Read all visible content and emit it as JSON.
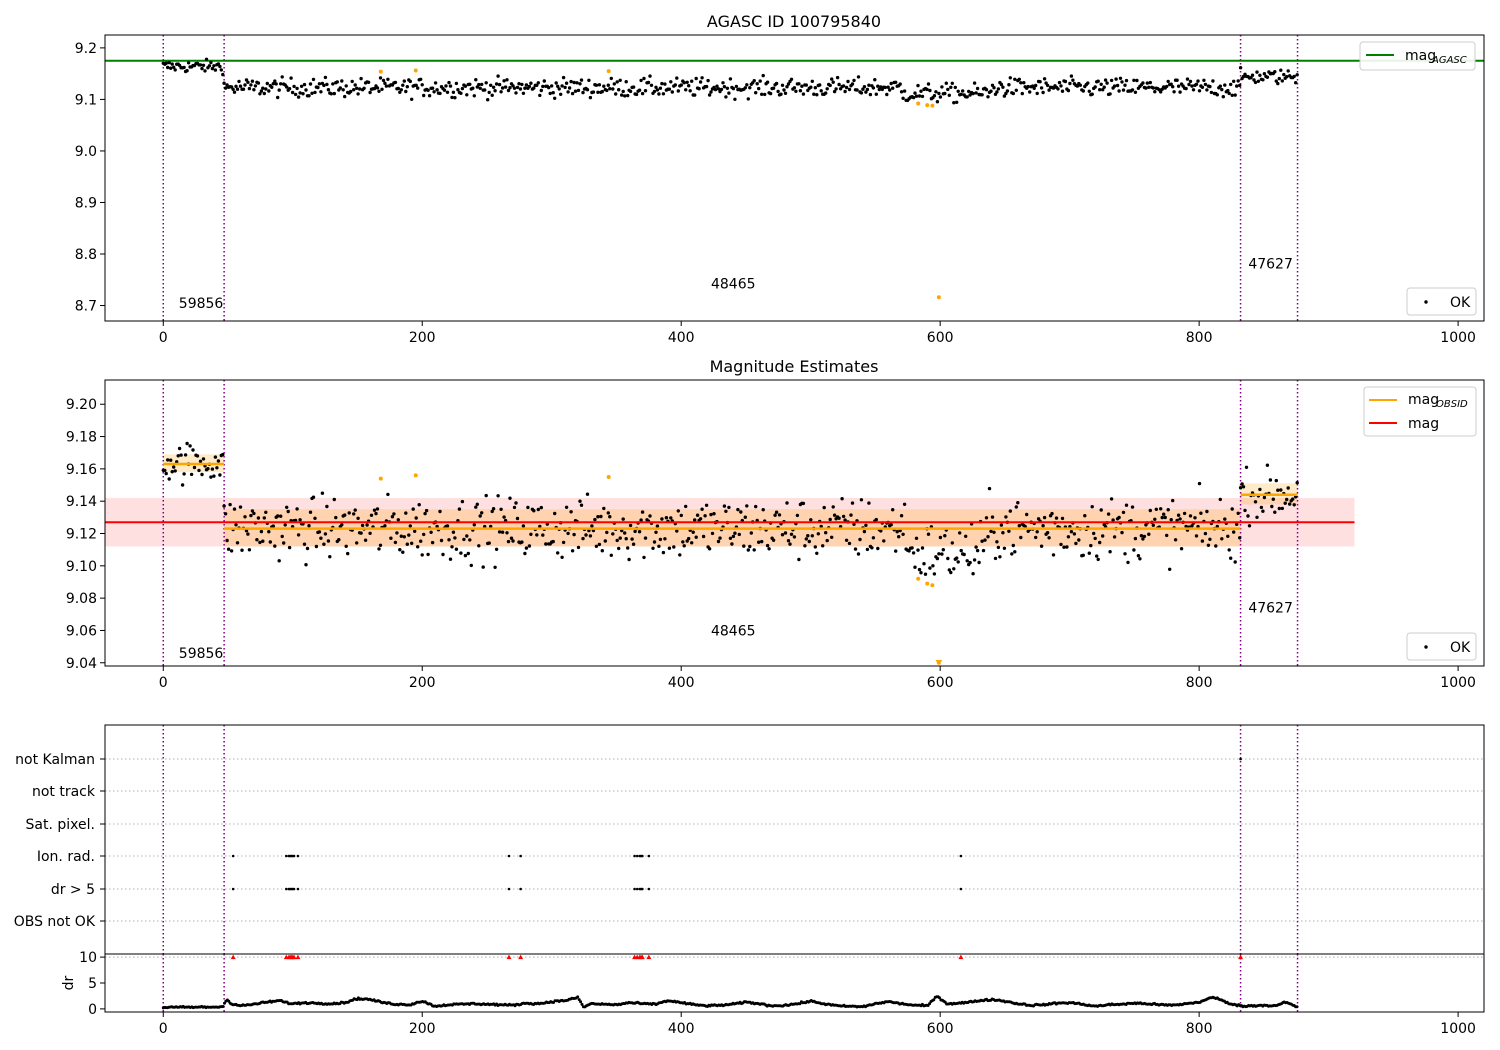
{
  "chart_data": [
    {
      "type": "scatter",
      "title": "AGASC ID 100795840",
      "xlim": [
        -45,
        1020
      ],
      "ylim": [
        8.67,
        9.225
      ],
      "xticks": [
        "0",
        "200",
        "400",
        "600",
        "800",
        "1000"
      ],
      "yticks": [
        "9.2",
        "9.1",
        "9.0",
        "8.9",
        "8.8",
        "8.7"
      ],
      "reference_line": {
        "name": "mag",
        "subscript": "AGASC",
        "value": 9.175,
        "color": "#008000"
      },
      "boundaries": [
        0,
        47,
        832,
        876
      ],
      "obsid_labels": [
        {
          "text": "59856",
          "x": 12,
          "y": 8.695
        },
        {
          "text": "48465",
          "x": 423,
          "y": 8.733
        },
        {
          "text": "47627",
          "x": 838,
          "y": 8.772
        }
      ],
      "legend": [
        {
          "label": "mag",
          "subscript": "AGASC",
          "position": "top-right"
        },
        {
          "label": "OK",
          "position": "bottom-right"
        }
      ],
      "outliers": [
        {
          "x": 168,
          "y": 9.154
        },
        {
          "x": 195,
          "y": 9.156
        },
        {
          "x": 344,
          "y": 9.155
        },
        {
          "x": 583,
          "y": 9.092
        },
        {
          "x": 590,
          "y": 9.089
        },
        {
          "x": 594,
          "y": 9.088
        },
        {
          "x": 599,
          "y": 8.716
        }
      ],
      "series": [
        {
          "name": "OK",
          "x_range": [
            0,
            47
          ],
          "mean": 9.164,
          "scatter": 0.012
        },
        {
          "name": "OK",
          "x_range": [
            47,
            832
          ],
          "mean": 9.123,
          "scatter": 0.015
        },
        {
          "name": "OK",
          "x_range": [
            832,
            876
          ],
          "mean": 9.144,
          "scatter": 0.012
        }
      ]
    },
    {
      "type": "scatter",
      "title": "Magnitude Estimates",
      "xlim": [
        -45,
        1020
      ],
      "ylim": [
        9.038,
        9.215
      ],
      "xticks": [
        "0",
        "200",
        "400",
        "600",
        "800",
        "1000"
      ],
      "yticks": [
        "9.20",
        "9.18",
        "9.16",
        "9.14",
        "9.12",
        "9.10",
        "9.08",
        "9.06",
        "9.04"
      ],
      "boundaries": [
        0,
        47,
        832,
        876
      ],
      "mag": {
        "value": 9.127,
        "band": [
          9.112,
          9.142
        ],
        "x_range": [
          -45,
          920
        ]
      },
      "obsid_mags": [
        {
          "x_range": [
            0,
            47
          ],
          "value": 9.163,
          "band": [
            9.158,
            9.169
          ]
        },
        {
          "x_range": [
            47,
            832
          ],
          "value": 9.123,
          "band": [
            9.112,
            9.135
          ]
        },
        {
          "x_range": [
            832,
            876
          ],
          "value": 9.144,
          "band": [
            9.138,
            9.151
          ]
        }
      ],
      "obsid_labels": [
        {
          "text": "59856",
          "x": 12,
          "y": 9.043
        },
        {
          "text": "48465",
          "x": 423,
          "y": 9.057
        },
        {
          "text": "47627",
          "x": 838,
          "y": 9.071
        }
      ],
      "legend": [
        {
          "label": "mag",
          "subscript": "OBSID",
          "position": "top-right"
        },
        {
          "label": "mag",
          "position": "top-right"
        },
        {
          "label": "OK",
          "position": "bottom-right"
        }
      ],
      "outliers": [
        {
          "x": 168,
          "y": 9.154
        },
        {
          "x": 195,
          "y": 9.156
        },
        {
          "x": 344,
          "y": 9.155
        },
        {
          "x": 583,
          "y": 9.092
        },
        {
          "x": 590,
          "y": 9.089
        },
        {
          "x": 594,
          "y": 9.088
        },
        {
          "x": 599,
          "y": 9.04
        }
      ]
    },
    {
      "type": "scatter",
      "title": "",
      "xlim": [
        -45,
        1020
      ],
      "xticks": [
        "0",
        "200",
        "400",
        "600",
        "800",
        "1000"
      ],
      "boundaries": [
        0,
        47,
        832,
        876
      ],
      "flag_rows": [
        "not Kalman",
        "not track",
        "Sat. pixel.",
        "Ion. rad.",
        "dr > 5",
        "OBS not OK"
      ],
      "flag_points": {
        "not Kalman": [
          832
        ],
        "Ion. rad.": [
          54,
          95,
          97,
          98,
          99,
          100,
          101,
          104,
          267,
          276,
          364,
          366,
          368,
          369,
          370,
          375,
          616
        ],
        "dr > 5": [
          54,
          95,
          97,
          98,
          99,
          100,
          101,
          104,
          267,
          276,
          364,
          366,
          368,
          369,
          370,
          375,
          616
        ]
      },
      "dr_axis": {
        "label": "dr",
        "yticks": [
          "10",
          "5",
          "0"
        ],
        "ylim": [
          -0.6,
          10.6
        ]
      },
      "dr_clipped_x": [
        54,
        95,
        97,
        98,
        99,
        100,
        101,
        104,
        267,
        276,
        364,
        366,
        368,
        369,
        370,
        375,
        616,
        832
      ],
      "dr_points": [
        [
          0,
          0.3
        ],
        [
          40,
          0.35
        ],
        [
          46,
          0.4
        ],
        [
          49,
          2.0
        ],
        [
          52,
          1.0
        ],
        [
          60,
          0.6
        ],
        [
          70,
          0.9
        ],
        [
          80,
          1.3
        ],
        [
          90,
          1.6
        ],
        [
          95,
          1.2
        ],
        [
          100,
          1.0
        ],
        [
          110,
          1.2
        ],
        [
          120,
          1.1
        ],
        [
          130,
          1.0
        ],
        [
          140,
          1.2
        ],
        [
          150,
          2.0
        ],
        [
          160,
          1.8
        ],
        [
          170,
          1.2
        ],
        [
          180,
          0.9
        ],
        [
          190,
          0.8
        ],
        [
          200,
          1.5
        ],
        [
          210,
          0.5
        ],
        [
          220,
          0.8
        ],
        [
          240,
          1.0
        ],
        [
          260,
          0.8
        ],
        [
          270,
          0.7
        ],
        [
          280,
          1.1
        ],
        [
          290,
          1.0
        ],
        [
          300,
          1.4
        ],
        [
          310,
          1.6
        ],
        [
          320,
          2.2
        ],
        [
          325,
          0.3
        ],
        [
          330,
          1.0
        ],
        [
          350,
          0.8
        ],
        [
          360,
          1.2
        ],
        [
          370,
          1.0
        ],
        [
          380,
          0.9
        ],
        [
          390,
          1.6
        ],
        [
          400,
          1.2
        ],
        [
          410,
          0.8
        ],
        [
          420,
          0.6
        ],
        [
          430,
          0.7
        ],
        [
          440,
          0.9
        ],
        [
          450,
          1.3
        ],
        [
          460,
          1.0
        ],
        [
          470,
          0.6
        ],
        [
          480,
          0.7
        ],
        [
          490,
          1.0
        ],
        [
          500,
          1.5
        ],
        [
          510,
          1.0
        ],
        [
          520,
          0.6
        ],
        [
          530,
          0.5
        ],
        [
          540,
          0.4
        ],
        [
          550,
          1.0
        ],
        [
          560,
          1.4
        ],
        [
          570,
          1.0
        ],
        [
          580,
          0.7
        ],
        [
          590,
          0.6
        ],
        [
          598,
          2.5
        ],
        [
          605,
          1.0
        ],
        [
          620,
          1.2
        ],
        [
          630,
          1.6
        ],
        [
          640,
          1.8
        ],
        [
          650,
          1.5
        ],
        [
          660,
          1.0
        ],
        [
          670,
          0.7
        ],
        [
          680,
          0.8
        ],
        [
          690,
          1.1
        ],
        [
          700,
          1.2
        ],
        [
          710,
          0.9
        ],
        [
          720,
          0.5
        ],
        [
          730,
          0.8
        ],
        [
          740,
          0.9
        ],
        [
          750,
          1.1
        ],
        [
          760,
          1.0
        ],
        [
          770,
          0.8
        ],
        [
          780,
          0.7
        ],
        [
          790,
          1.0
        ],
        [
          800,
          1.3
        ],
        [
          810,
          2.2
        ],
        [
          815,
          2.0
        ],
        [
          820,
          1.3
        ],
        [
          828,
          0.8
        ],
        [
          834,
          0.5
        ],
        [
          840,
          0.6
        ],
        [
          850,
          0.7
        ],
        [
          860,
          0.6
        ],
        [
          866,
          1.3
        ],
        [
          872,
          0.8
        ],
        [
          876,
          0.2
        ]
      ]
    }
  ],
  "colors": {
    "ok_points": "#000000",
    "outliers": "#ffa500",
    "agasc_line": "#008000",
    "mag_line": "#ff0000",
    "obsid_line": "#ffa500",
    "boundary_line": "#800080",
    "dr_clipped": "#ff0000"
  }
}
